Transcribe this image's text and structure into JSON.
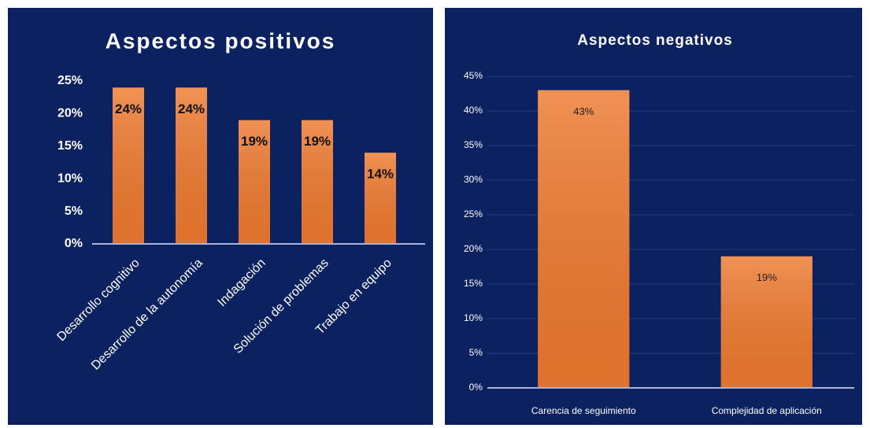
{
  "chart_data": [
    {
      "type": "bar",
      "title": "Aspectos positivos",
      "categories": [
        "Desarrollo cognitivo",
        "Desarrollo de la autonomía",
        "Indagación",
        "Solución de problemas",
        "Trabajo en equipo"
      ],
      "values": [
        24,
        24,
        19,
        19,
        14
      ],
      "value_labels": [
        "24%",
        "24%",
        "19%",
        "19%",
        "14%"
      ],
      "color": "#ee7a30",
      "ylim": [
        0,
        25
      ],
      "yticks": [
        {
          "value": 0,
          "label": "0%"
        },
        {
          "value": 5,
          "label": "5%"
        },
        {
          "value": 10,
          "label": "10%"
        },
        {
          "value": 15,
          "label": "15%"
        },
        {
          "value": 20,
          "label": "20%"
        },
        {
          "value": 25,
          "label": "25%"
        }
      ],
      "grid": false
    },
    {
      "type": "bar",
      "title": "Aspectos negativos",
      "categories": [
        "Carencia de seguimiento",
        "Complejidad de aplicación"
      ],
      "values": [
        43,
        19
      ],
      "value_labels": [
        "43%",
        "19%"
      ],
      "color": "#ee7a30",
      "ylim": [
        0,
        45
      ],
      "yticks": [
        {
          "value": 0,
          "label": "0%"
        },
        {
          "value": 5,
          "label": "5%"
        },
        {
          "value": 10,
          "label": "10%"
        },
        {
          "value": 15,
          "label": "15%"
        },
        {
          "value": 20,
          "label": "20%"
        },
        {
          "value": 25,
          "label": "25%"
        },
        {
          "value": 30,
          "label": "30%"
        },
        {
          "value": 35,
          "label": "35%"
        },
        {
          "value": 40,
          "label": "40%"
        },
        {
          "value": 45,
          "label": "45%"
        }
      ],
      "grid": true
    }
  ]
}
